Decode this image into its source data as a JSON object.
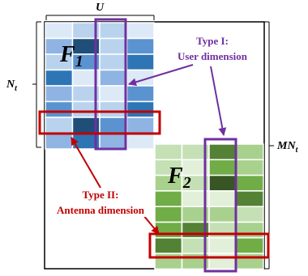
{
  "labels": {
    "top_u": "U",
    "left_nt": "N",
    "left_nt_sub": "t",
    "right_mnt": "MN",
    "right_mnt_sub": "t",
    "block1": "F",
    "block1_sub": "1",
    "block2": "F",
    "block2_sub": "2"
  },
  "annotations": {
    "type1_line1": "Type I:",
    "type1_line2": "User dimension",
    "type2_line1": "Type II:",
    "type2_line2": "Antenna dimension"
  },
  "colors": {
    "purple": "#7030a0",
    "red": "#c00000",
    "matrix_border": "#000000",
    "blue_palette": [
      "#dde9f7",
      "#b9d3ee",
      "#8fb4e3",
      "#5b93d1",
      "#2e75b6",
      "#1f4e79"
    ],
    "green_palette": [
      "#e2efd9",
      "#c5e0b4",
      "#a9d18e",
      "#70ad47",
      "#548235",
      "#375623"
    ]
  },
  "grid1": {
    "rows": 8,
    "cols": 4,
    "cells": [
      [
        0,
        1,
        1,
        0
      ],
      [
        2,
        5,
        1,
        3
      ],
      [
        1,
        3,
        1,
        4
      ],
      [
        4,
        0,
        2,
        0
      ],
      [
        2,
        1,
        0,
        3
      ],
      [
        3,
        1,
        1,
        4
      ],
      [
        1,
        5,
        3,
        2
      ],
      [
        2,
        4,
        2,
        0
      ]
    ]
  },
  "grid2": {
    "rows": 8,
    "cols": 4,
    "cells": [
      [
        1,
        1,
        4,
        2
      ],
      [
        1,
        0,
        3,
        2
      ],
      [
        2,
        1,
        5,
        3
      ],
      [
        3,
        0,
        0,
        4
      ],
      [
        3,
        2,
        2,
        1
      ],
      [
        3,
        4,
        1,
        2
      ],
      [
        4,
        1,
        0,
        3
      ],
      [
        2,
        2,
        0,
        2
      ]
    ]
  }
}
